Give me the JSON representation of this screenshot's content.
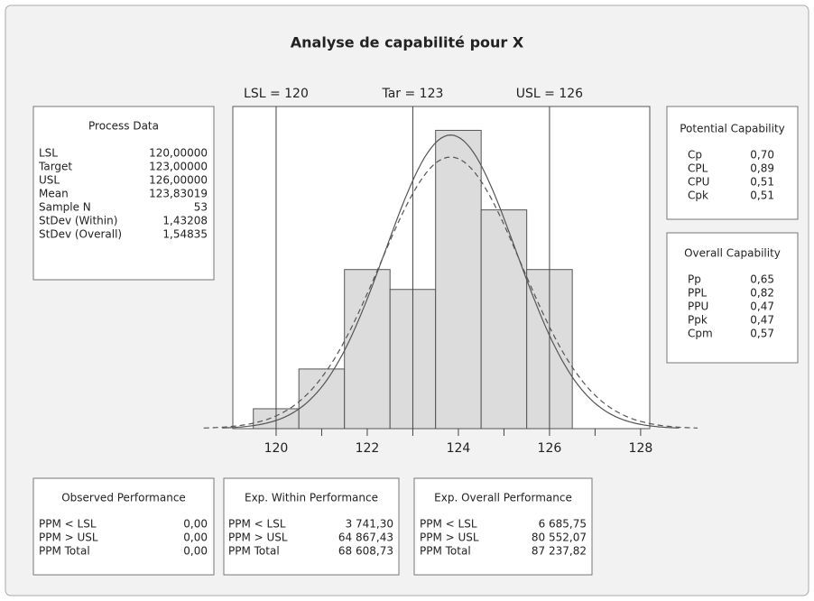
{
  "chart_data": {
    "type": "histogram",
    "title": "Analyse de capabilité pour X",
    "bins": [
      119.5,
      120.5,
      121.5,
      122.5,
      123.5,
      124.5,
      125.5,
      126.5
    ],
    "counts": [
      1,
      3,
      8,
      7,
      15,
      11,
      8
    ],
    "color": "#dcdcdc",
    "xlim": [
      119.05,
      128.2
    ],
    "ylim": [
      0,
      16.2
    ],
    "xticks": [
      120,
      122,
      124,
      126,
      128
    ],
    "xminorticks": [
      121,
      123,
      125,
      127
    ],
    "ref_lines": [
      {
        "label": "LSL = 120",
        "value": 120
      },
      {
        "label": "Tar = 123",
        "value": 123
      },
      {
        "label": "USL = 126",
        "value": 126
      }
    ],
    "curves": [
      {
        "mean": 123.83019,
        "sd": 1.43208,
        "n": 53,
        "style": "solid"
      },
      {
        "mean": 123.83019,
        "sd": 1.54835,
        "n": 53,
        "style": "dashed"
      }
    ]
  },
  "panels": [
    {
      "title": "Process Data",
      "rows": [
        [
          "LSL",
          "120,00000"
        ],
        [
          "Target",
          "123,00000"
        ],
        [
          "USL",
          "126,00000"
        ],
        [
          "Mean",
          "123,83019"
        ],
        [
          "Sample N",
          "53"
        ],
        [
          "StDev (Within)",
          "1,43208"
        ],
        [
          "StDev (Overall)",
          "1,54835"
        ]
      ]
    },
    {
      "title": "Potential Capability",
      "rows": [
        [
          "Cp",
          "0,70"
        ],
        [
          "CPL",
          "0,89"
        ],
        [
          "CPU",
          "0,51"
        ],
        [
          "Cpk",
          "0,51"
        ]
      ]
    },
    {
      "title": "Overall Capability",
      "rows": [
        [
          "Pp",
          "0,65"
        ],
        [
          "PPL",
          "0,82"
        ],
        [
          "PPU",
          "0,47"
        ],
        [
          "Ppk",
          "0,47"
        ],
        [
          "Cpm",
          "0,57"
        ]
      ]
    },
    {
      "title": "Observed Performance",
      "rows": [
        [
          "PPM < LSL",
          "0,00"
        ],
        [
          "PPM > USL",
          "0,00"
        ],
        [
          "PPM Total",
          "0,00"
        ]
      ]
    },
    {
      "title": "Exp. Within Performance",
      "rows": [
        [
          "PPM < LSL",
          "3 741,30"
        ],
        [
          "PPM > USL",
          "64 867,43"
        ],
        [
          "PPM Total",
          "68 608,73"
        ]
      ]
    },
    {
      "title": "Exp. Overall Performance",
      "rows": [
        [
          "PPM < LSL",
          "6 685,75"
        ],
        [
          "PPM > USL",
          "80 552,07"
        ],
        [
          "PPM Total",
          "87 237,82"
        ]
      ]
    }
  ]
}
